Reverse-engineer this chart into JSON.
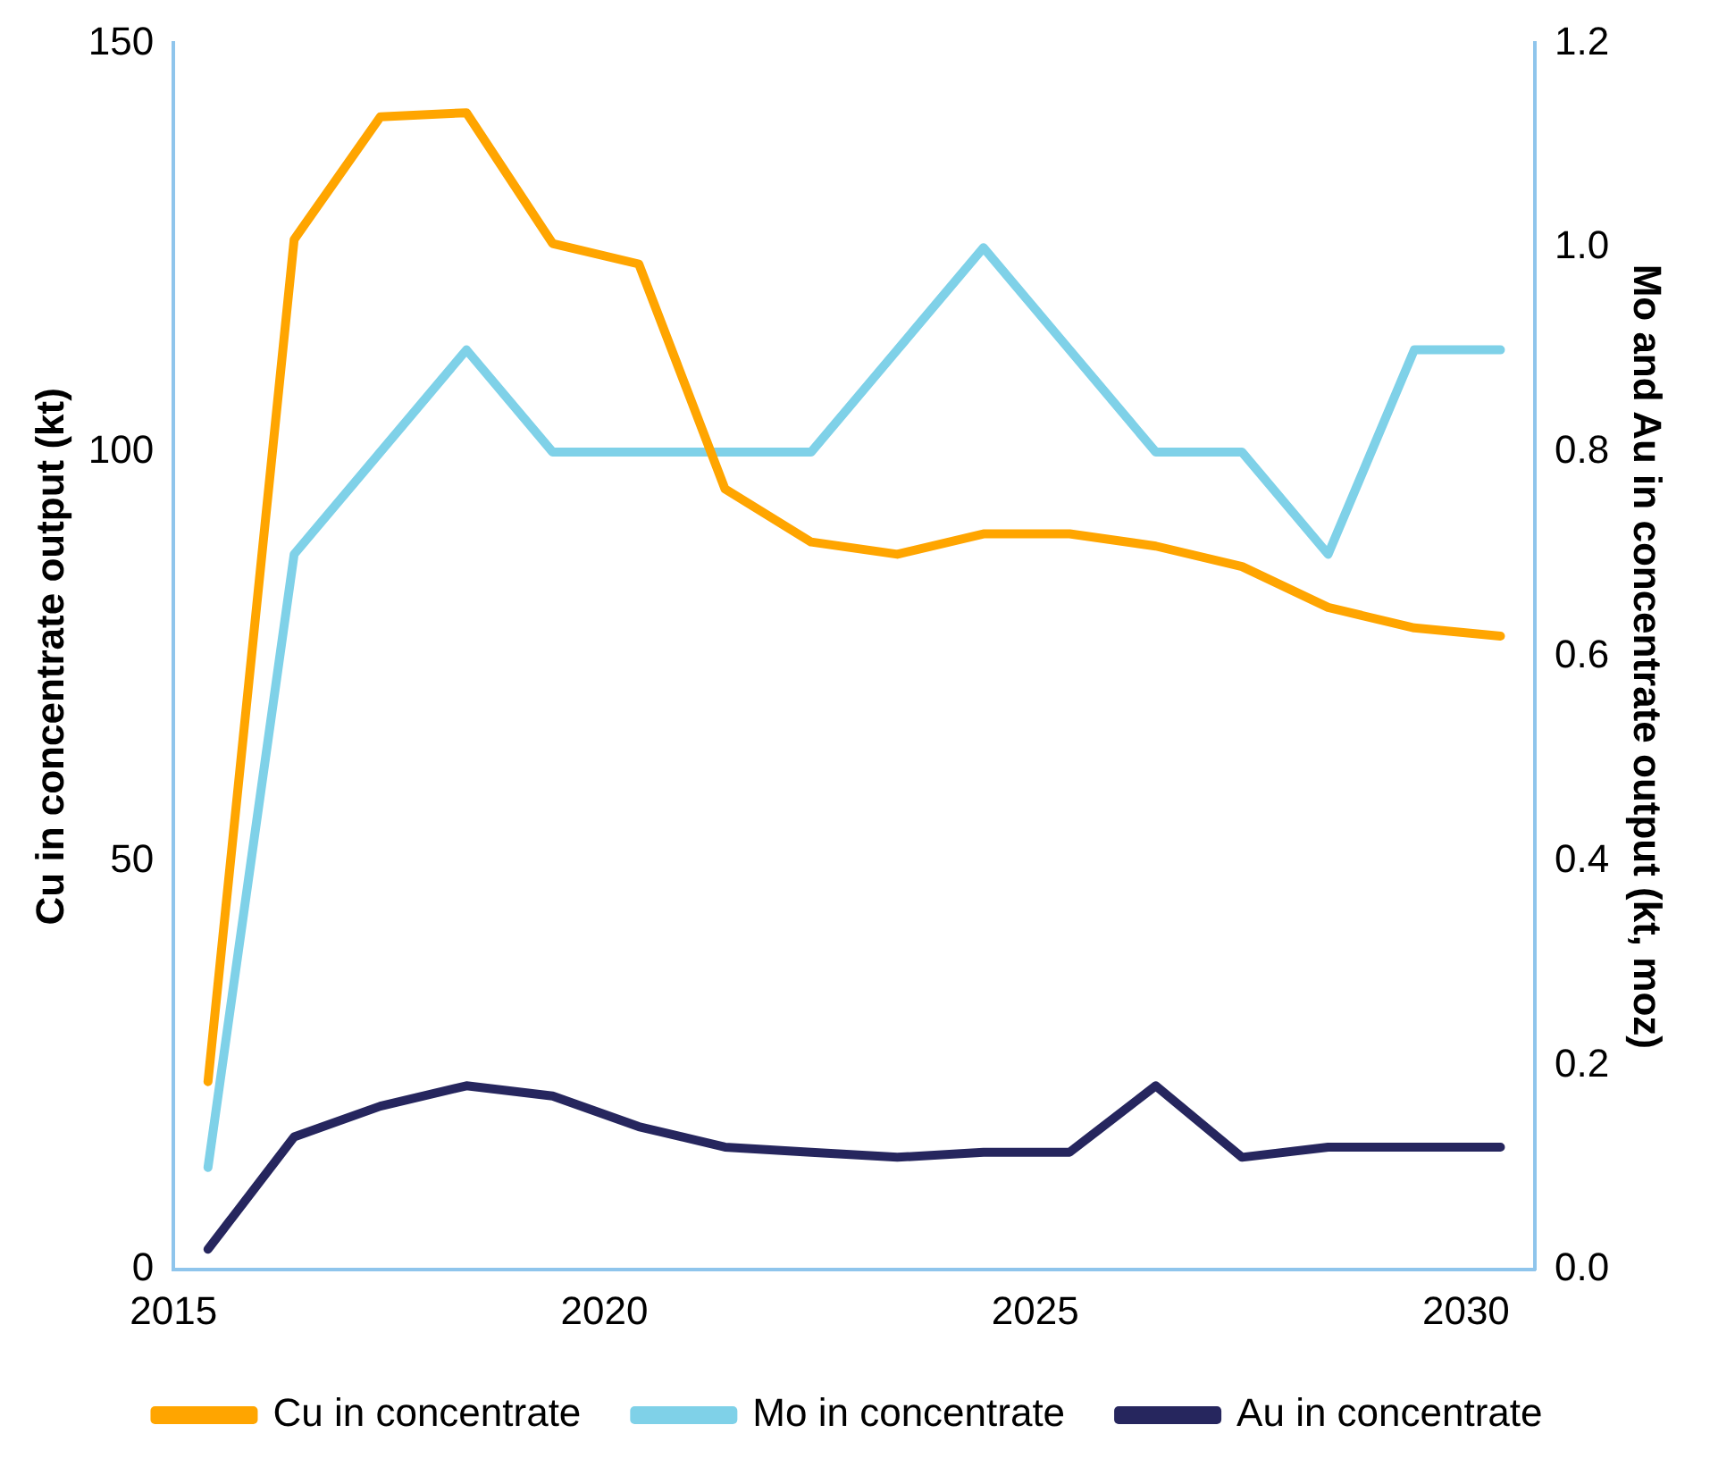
{
  "chart_data": {
    "type": "line",
    "ylabel": "Cu in concentrate output (kt)",
    "y2label": "Mo and Au in concentrate output (kt, moz)",
    "x": [
      2015.4,
      2016.4,
      2017.4,
      2018.4,
      2019.4,
      2020.4,
      2021.4,
      2022.4,
      2023.4,
      2024.4,
      2025.4,
      2026.4,
      2027.4,
      2028.4,
      2029.4,
      2030.4
    ],
    "xlim": [
      2015,
      2030.8
    ],
    "xticks": [
      2015,
      2020,
      2025,
      2030
    ],
    "ylim": [
      0,
      150
    ],
    "yticks": [
      0,
      50,
      100,
      150
    ],
    "y2lim": [
      0,
      1.2
    ],
    "y2ticks": [
      {
        "value": 0,
        "label": "0.0"
      },
      {
        "value": 0.2,
        "label": "0.2"
      },
      {
        "value": 0.4,
        "label": "0.4"
      },
      {
        "value": 0.6,
        "label": "0.6"
      },
      {
        "value": 0.8,
        "label": "0.8"
      },
      {
        "value": 1,
        "label": "1.0"
      },
      {
        "value": 1.2,
        "label": "1.2"
      }
    ],
    "series": [
      {
        "name": "Cu in concentrate",
        "color": "#ffa500",
        "values": [
          23,
          126,
          141,
          141.5,
          125.5,
          123,
          95.5,
          89,
          87.5,
          90,
          90,
          88.5,
          86,
          81,
          78.5,
          77.5
        ]
      },
      {
        "name": "Mo in concentrate",
        "color": "#7fd1e8",
        "axis": "y2",
        "values": [
          0.1,
          0.7,
          0.8,
          0.9,
          0.8,
          0.8,
          0.8,
          0.8,
          0.9,
          1.0,
          0.9,
          0.8,
          0.8,
          0.7,
          0.9,
          0.9
        ]
      },
      {
        "name": "Au in concentrate",
        "color": "#26265e",
        "axis": "y2",
        "values": [
          0.02,
          0.13,
          0.16,
          0.18,
          0.17,
          0.14,
          0.12,
          0.115,
          0.11,
          0.115,
          0.115,
          0.18,
          0.11,
          0.12,
          0.12,
          0.12
        ]
      }
    ],
    "grid": false,
    "legend": "bottom",
    "marker": "none",
    "line_style": "solid"
  }
}
